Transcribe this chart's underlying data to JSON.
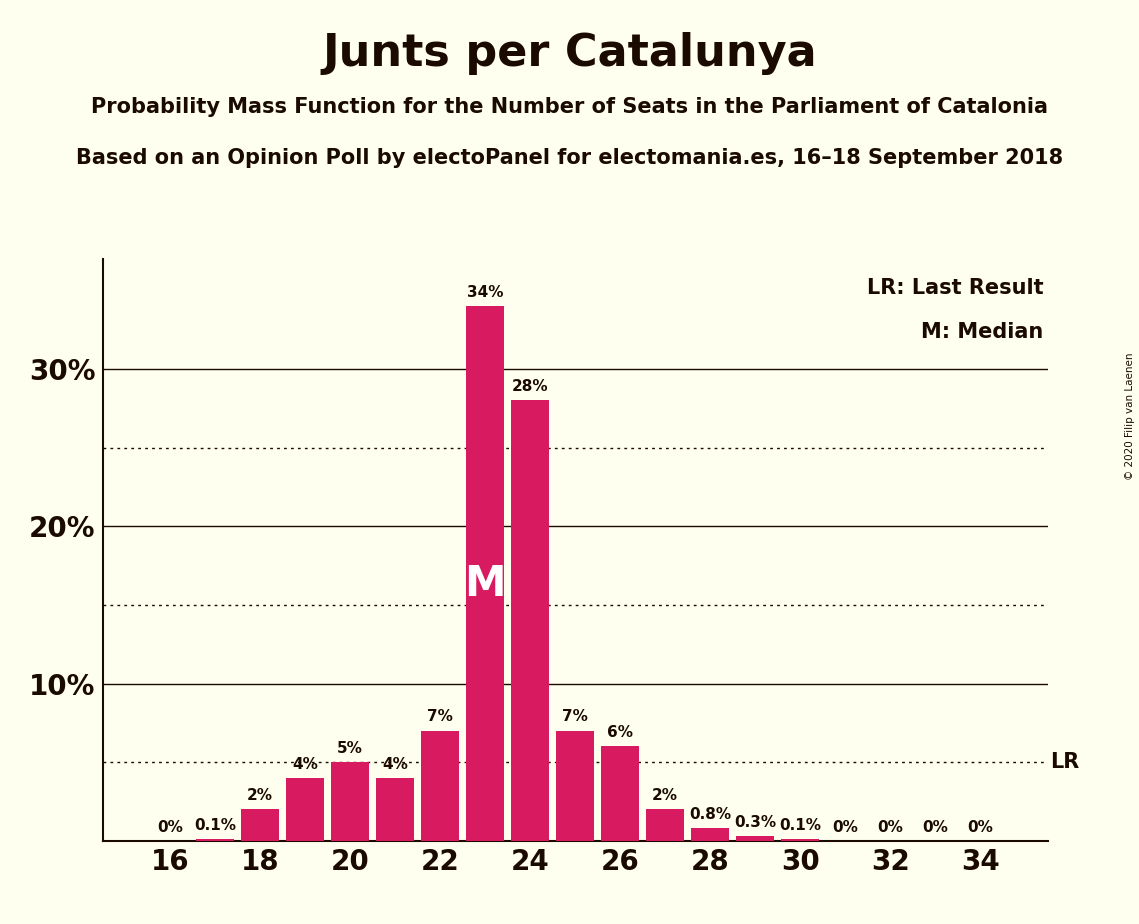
{
  "title": "Junts per Catalunya",
  "subtitle1": "Probability Mass Function for the Number of Seats in the Parliament of Catalonia",
  "subtitle2": "Based on an Opinion Poll by electoPanel for electomania.es, 16–18 September 2018",
  "copyright": "© 2020 Filip van Laenen",
  "legend_lr": "LR: Last Result",
  "legend_m": "M: Median",
  "seats": [
    16,
    17,
    18,
    19,
    20,
    21,
    22,
    23,
    24,
    25,
    26,
    27,
    28,
    29,
    30,
    31,
    32,
    33,
    34
  ],
  "probabilities": [
    0.0,
    0.1,
    2.0,
    4.0,
    5.0,
    4.0,
    7.0,
    34.0,
    28.0,
    7.0,
    6.0,
    2.0,
    0.8,
    0.3,
    0.1,
    0.0,
    0.0,
    0.0,
    0.0
  ],
  "bar_color": "#D81B60",
  "background_color": "#FFFFF0",
  "text_color": "#1a0a00",
  "median_seat": 23,
  "last_result_value": 5.0,
  "ylim_max": 37,
  "solid_yticks": [
    10,
    20,
    30
  ],
  "dotted_yticks": [
    5,
    15,
    25
  ],
  "xlabel_ticks": [
    16,
    18,
    20,
    22,
    24,
    26,
    28,
    30,
    32,
    34
  ],
  "bar_width": 0.85
}
